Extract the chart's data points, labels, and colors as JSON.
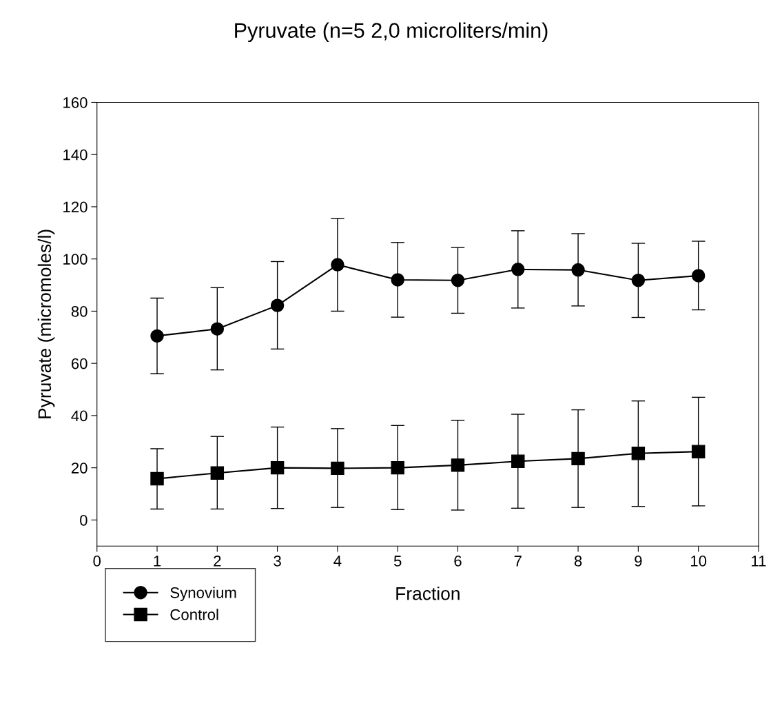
{
  "chart_data": {
    "type": "line",
    "title": "Pyruvate (n=5 2,0 microliters/min)",
    "xlabel": "Fraction",
    "ylabel": "Pyruvate (micromoles/l)",
    "x": [
      1,
      2,
      3,
      4,
      5,
      6,
      7,
      8,
      9,
      10
    ],
    "series": [
      {
        "name": "Synovium",
        "color": "#000000",
        "marker": "circle",
        "values": [
          70.5,
          73.2,
          82.2,
          97.8,
          92,
          91.8,
          96,
          95.8,
          91.8,
          93.6
        ],
        "errors": [
          [
            56,
            85
          ],
          [
            57.5,
            89
          ],
          [
            65.5,
            99
          ],
          [
            80,
            115.5
          ],
          [
            77.7,
            106.3
          ],
          [
            79.2,
            104.4
          ],
          [
            81.2,
            110.8
          ],
          [
            82,
            109.7
          ],
          [
            77.6,
            106
          ],
          [
            80.5,
            106.8
          ]
        ]
      },
      {
        "name": "Control",
        "color": "#000000",
        "marker": "square",
        "values": [
          15.8,
          18,
          20,
          19.8,
          20,
          21,
          22.5,
          23.5,
          25.5,
          26.2
        ],
        "errors": [
          [
            4.2,
            27.3
          ],
          [
            4.2,
            32
          ],
          [
            4.4,
            35.6
          ],
          [
            4.8,
            35
          ],
          [
            4,
            36.2
          ],
          [
            3.8,
            38.2
          ],
          [
            4.5,
            40.5
          ],
          [
            4.8,
            42.2
          ],
          [
            5.2,
            45.6
          ],
          [
            5.4,
            47
          ]
        ]
      }
    ],
    "xlim": [
      0,
      11
    ],
    "xticks": [
      0,
      1,
      2,
      3,
      4,
      5,
      6,
      7,
      8,
      9,
      10,
      11
    ],
    "ylim": [
      -10,
      160
    ],
    "yticks": [
      0,
      20,
      40,
      60,
      80,
      100,
      120,
      140,
      160
    ],
    "grid": false,
    "legend": "bottom left",
    "line_style": "solid"
  }
}
